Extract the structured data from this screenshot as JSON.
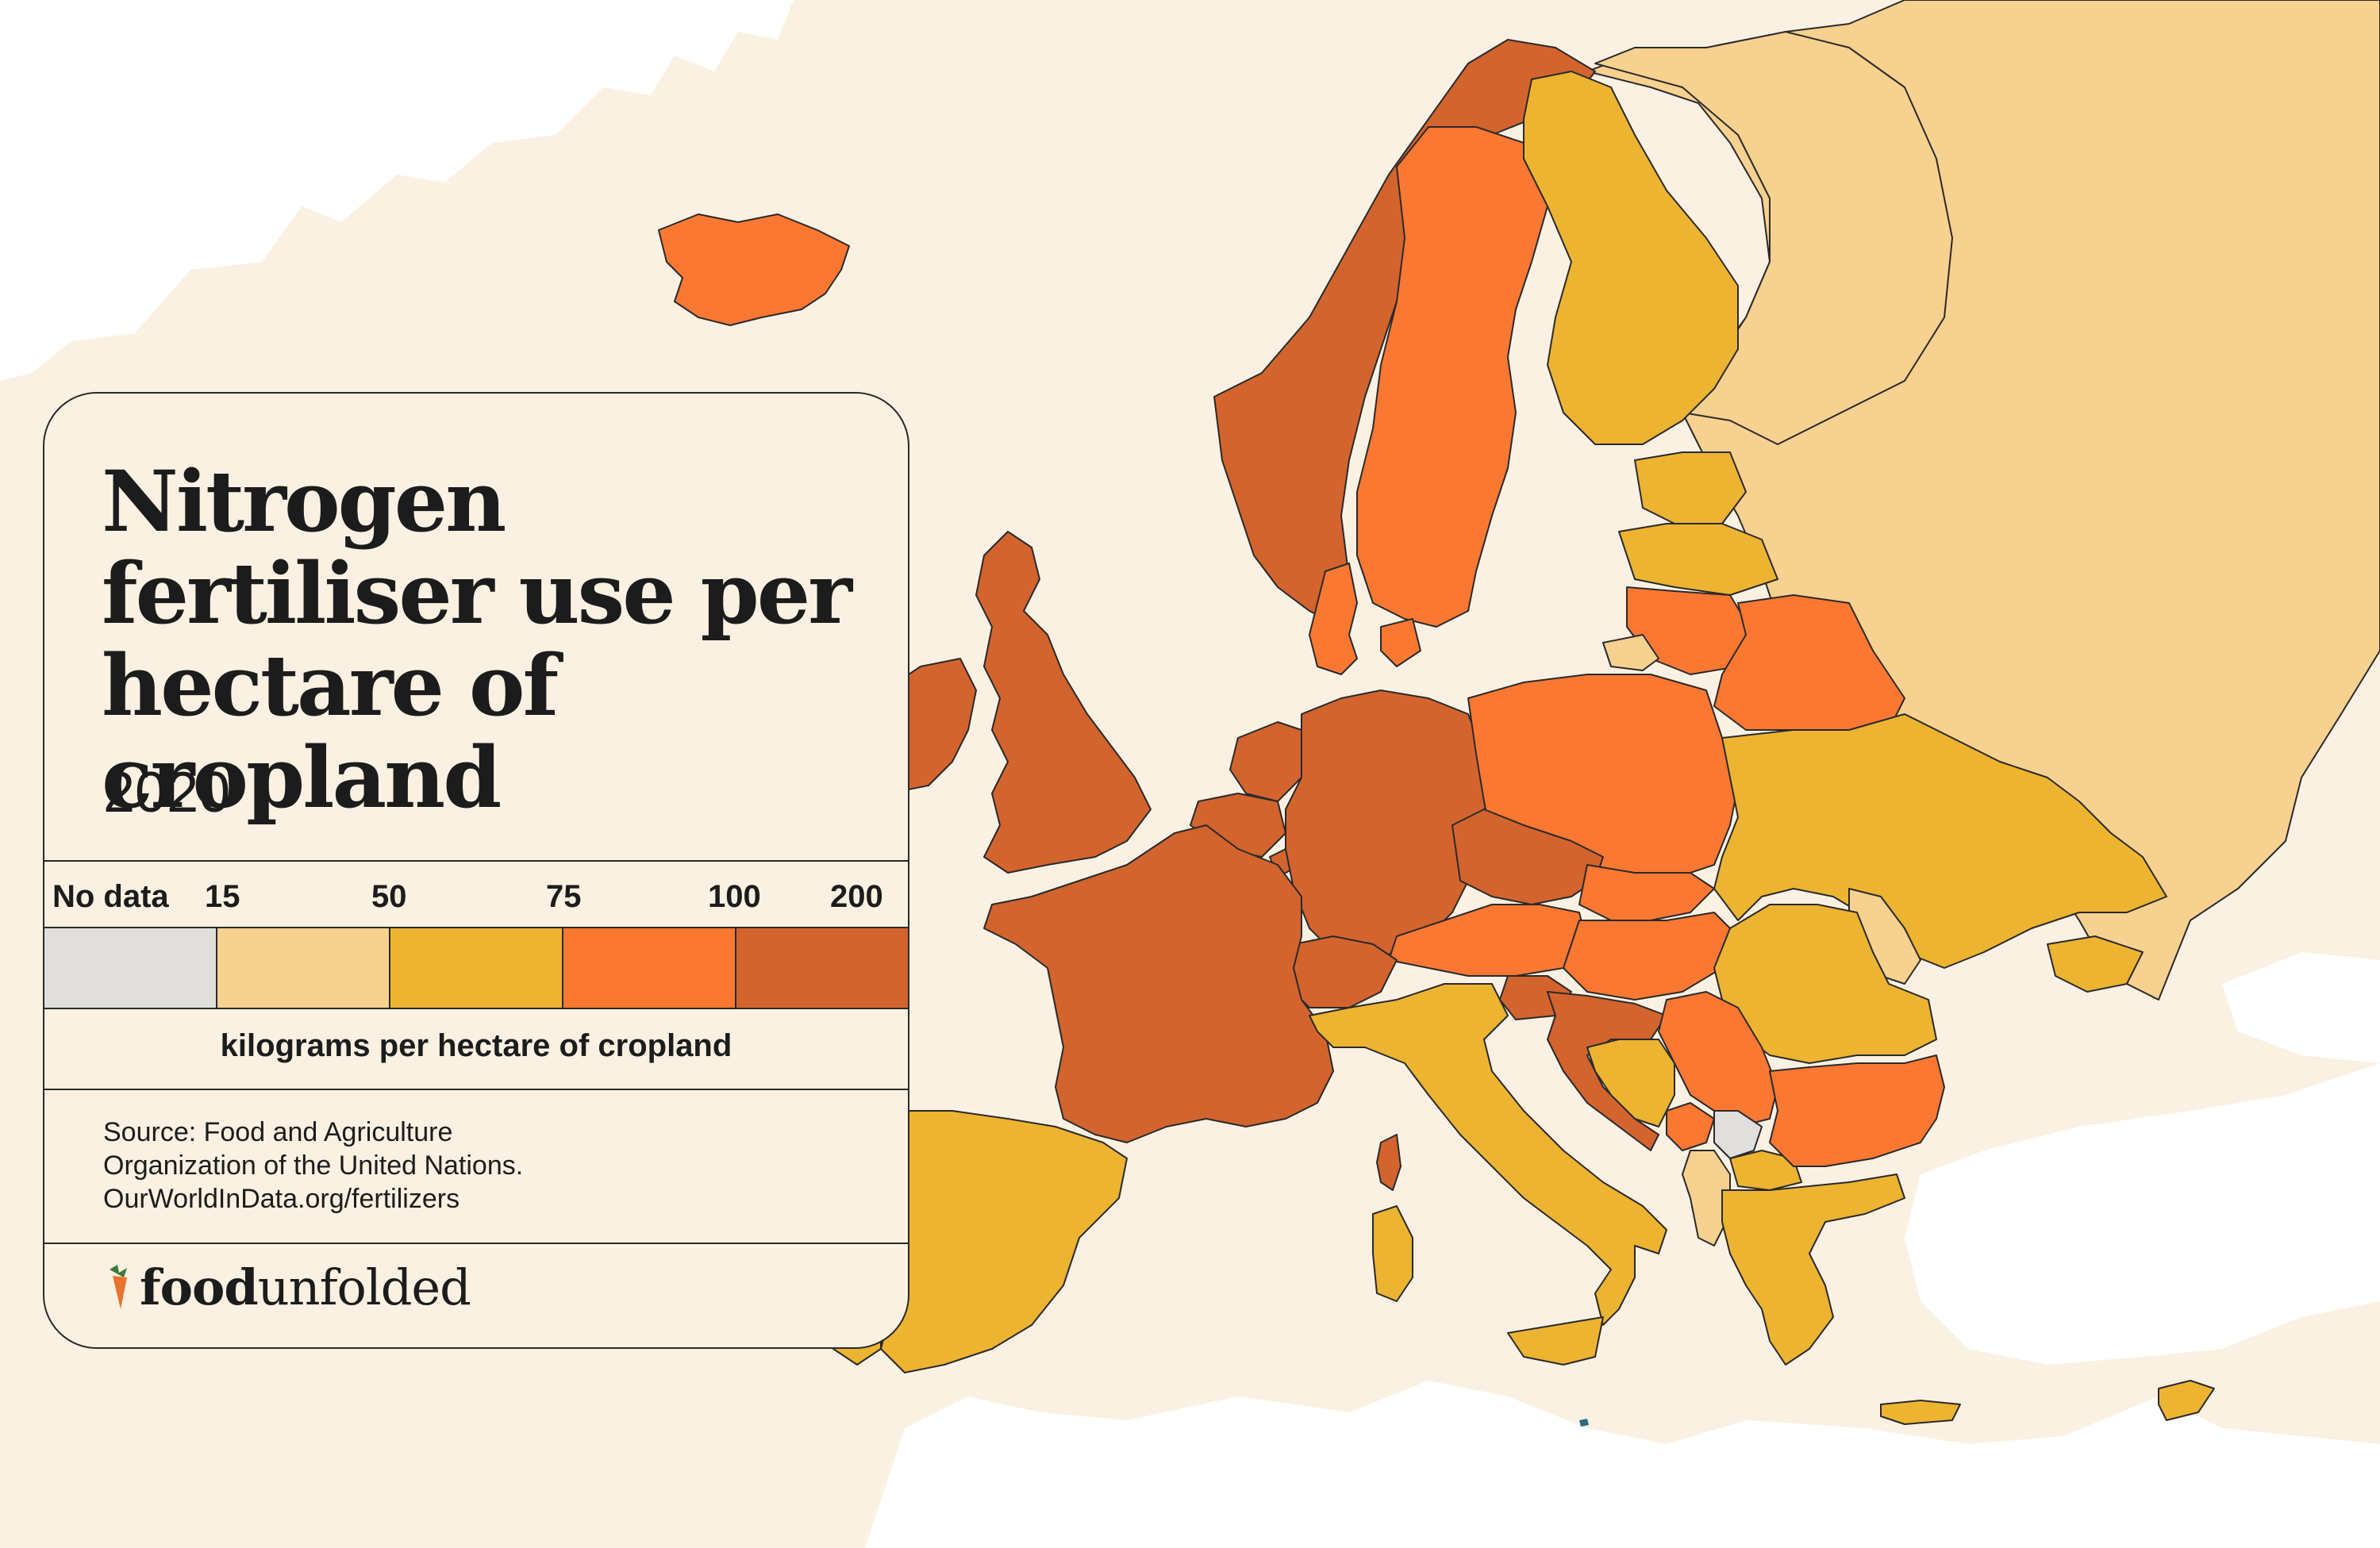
{
  "title": "Nitrogen fertiliser use per hectare of cropland",
  "year": "2020",
  "legend": {
    "ticks": [
      "No data",
      "15",
      "50",
      "75",
      "100",
      "200"
    ],
    "unit": "kilograms per hectare of cropland",
    "colors": {
      "no_data": "#e0dfdd",
      "bin_15_50": "#f7d18f",
      "bin_50_75": "#edb432",
      "bin_75_100": "#fb7832",
      "bin_100_200": "#d3642e"
    }
  },
  "source": [
    "Source: Food and Agriculture",
    "Organization of the United Nations.",
    "OurWorldInData.org/fertilizers"
  ],
  "brand": {
    "bold": "food",
    "light": "unfolded"
  },
  "map": {
    "background_color": "#faf1e2",
    "non_europe_color": "#ffffff",
    "regions": [
      {
        "id": "iceland",
        "bin": "bin_75_100"
      },
      {
        "id": "norway",
        "bin": "bin_100_200"
      },
      {
        "id": "sweden",
        "bin": "bin_75_100"
      },
      {
        "id": "finland",
        "bin": "bin_50_75"
      },
      {
        "id": "russia",
        "bin": "bin_15_50"
      },
      {
        "id": "estonia",
        "bin": "bin_50_75"
      },
      {
        "id": "latvia",
        "bin": "bin_50_75"
      },
      {
        "id": "lithuania",
        "bin": "bin_75_100"
      },
      {
        "id": "kaliningrad",
        "bin": "bin_15_50"
      },
      {
        "id": "belarus",
        "bin": "bin_75_100"
      },
      {
        "id": "ireland",
        "bin": "bin_100_200"
      },
      {
        "id": "united-kingdom",
        "bin": "bin_100_200"
      },
      {
        "id": "denmark",
        "bin": "bin_75_100"
      },
      {
        "id": "netherlands",
        "bin": "bin_100_200"
      },
      {
        "id": "belgium",
        "bin": "bin_100_200"
      },
      {
        "id": "luxembourg",
        "bin": "bin_100_200"
      },
      {
        "id": "germany",
        "bin": "bin_100_200"
      },
      {
        "id": "poland",
        "bin": "bin_75_100"
      },
      {
        "id": "czechia",
        "bin": "bin_100_200"
      },
      {
        "id": "slovakia",
        "bin": "bin_75_100"
      },
      {
        "id": "austria",
        "bin": "bin_75_100"
      },
      {
        "id": "switzerland",
        "bin": "bin_100_200"
      },
      {
        "id": "hungary",
        "bin": "bin_75_100"
      },
      {
        "id": "ukraine",
        "bin": "bin_50_75"
      },
      {
        "id": "moldova",
        "bin": "bin_15_50"
      },
      {
        "id": "romania",
        "bin": "bin_50_75"
      },
      {
        "id": "france",
        "bin": "bin_100_200"
      },
      {
        "id": "spain",
        "bin": "bin_50_75"
      },
      {
        "id": "portugal",
        "bin": "bin_50_75"
      },
      {
        "id": "italy",
        "bin": "bin_50_75"
      },
      {
        "id": "slovenia",
        "bin": "bin_100_200"
      },
      {
        "id": "croatia",
        "bin": "bin_100_200"
      },
      {
        "id": "bosnia",
        "bin": "bin_50_75"
      },
      {
        "id": "serbia",
        "bin": "bin_75_100"
      },
      {
        "id": "montenegro",
        "bin": "bin_75_100"
      },
      {
        "id": "kosovo",
        "bin": "no_data"
      },
      {
        "id": "albania",
        "bin": "bin_15_50"
      },
      {
        "id": "north-macedonia",
        "bin": "bin_50_75"
      },
      {
        "id": "bulgaria",
        "bin": "bin_75_100"
      },
      {
        "id": "greece",
        "bin": "bin_50_75"
      },
      {
        "id": "corsica",
        "bin": "bin_100_200"
      },
      {
        "id": "sardinia",
        "bin": "bin_50_75"
      },
      {
        "id": "sicily",
        "bin": "bin_50_75"
      },
      {
        "id": "crete",
        "bin": "bin_50_75"
      },
      {
        "id": "cyprus",
        "bin": "bin_50_75"
      }
    ]
  }
}
